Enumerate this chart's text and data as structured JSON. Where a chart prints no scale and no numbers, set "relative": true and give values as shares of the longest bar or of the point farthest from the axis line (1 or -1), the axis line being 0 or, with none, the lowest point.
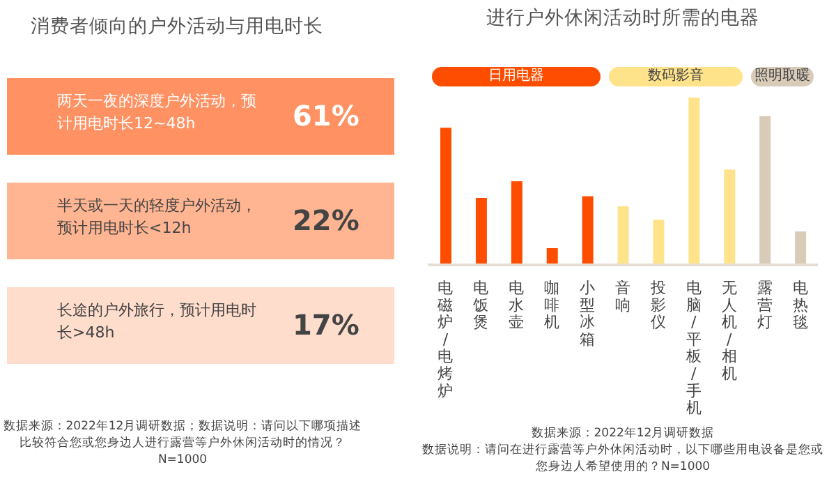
{
  "chart_data": [
    {
      "type": "other",
      "title": "消费者倾向的户外活动与用电时长",
      "categories": [
        "两天一夜的深度户外活动，预计用电时长12~48h",
        "半天或一天的轻度户外活动，预计用电时长<12h",
        "长途的户外旅行，预计用电时长>48h"
      ],
      "value_labels": [
        "61%",
        "22%",
        "17%"
      ],
      "colors": [
        "#ff9162",
        "#ffb592",
        "#ffddcc"
      ],
      "annotations": [
        "数据来源：2022年12月调研数据；数据说明：请问以下哪项描述比较符合您或您身边人进行露营等户外休闲活动时的情况？N=1000"
      ]
    },
    {
      "type": "bar",
      "title": "进行户外休闲活动时所需的电器",
      "relative": true,
      "legend": "top",
      "categories": [
        "电磁炉/电烤炉",
        "电饭煲",
        "电水壶",
        "咖啡机",
        "小型冰箱",
        "音响",
        "投影仪",
        "电脑/平板/手机",
        "无人机/相机",
        "露营灯",
        "电热毯"
      ],
      "series": [
        {
          "name": "日用电器",
          "color": "#ff4d00",
          "values": [
            0.82,
            0.4,
            0.5,
            0.1,
            0.41,
            null,
            null,
            null,
            null,
            null,
            null
          ]
        },
        {
          "name": "数码影音",
          "color": "#ffe38a",
          "values": [
            null,
            null,
            null,
            null,
            null,
            0.35,
            0.27,
            1,
            0.57,
            null,
            null
          ]
        },
        {
          "name": "照明取暖",
          "color": "#d8cbb8",
          "values": [
            null,
            null,
            null,
            null,
            null,
            null,
            null,
            null,
            null,
            0.89,
            0.2
          ]
        }
      ],
      "annotations": [
        "数据来源：2022年12月调研数据",
        "数据说明：请问在进行露营等户外休闲活动时，以下哪些用电设备是您或您身边人希望使用的？N=1000"
      ]
    }
  ]
}
